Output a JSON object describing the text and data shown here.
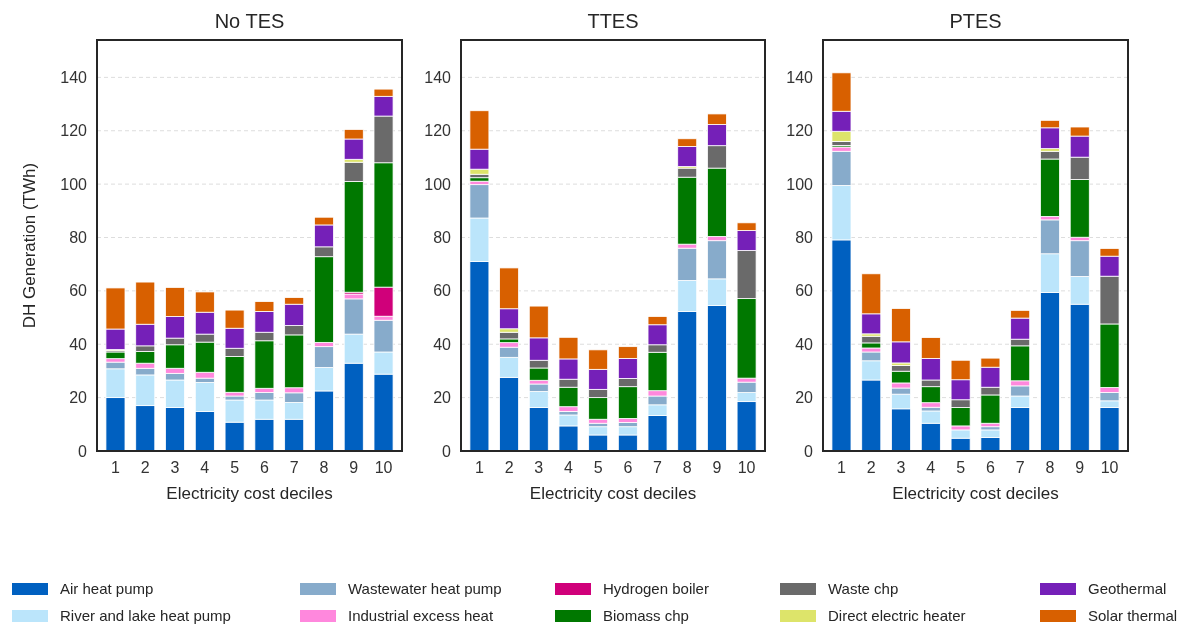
{
  "chart_data": [
    {
      "type": "bar",
      "stacked": true,
      "title": "No TES",
      "xlabel": "Electricity cost deciles",
      "ylabel": "DH Generation (TWh)",
      "categories": [
        "1",
        "2",
        "3",
        "4",
        "5",
        "6",
        "7",
        "8",
        "9",
        "10"
      ],
      "ylim": [
        0,
        154
      ],
      "yticks": [
        0,
        20,
        40,
        60,
        80,
        100,
        120,
        140
      ],
      "grid": "y",
      "legend": "bottom",
      "series": [
        {
          "name": "Air heat pump",
          "color": "#0060c0",
          "values": [
            20,
            17,
            16.3,
            14.8,
            10.8,
            11.9,
            11.9,
            22.5,
            32.9,
            28.8
          ]
        },
        {
          "name": "River and lake heat pump",
          "color": "#bbe5fb",
          "values": [
            10.8,
            11.5,
            10.3,
            10.9,
            8.3,
            7.2,
            6.3,
            8.8,
            10.9,
            8.3
          ]
        },
        {
          "name": "Wastewater heat pump",
          "color": "#87abcb",
          "values": [
            2.5,
            2.5,
            2.5,
            1.6,
            1.5,
            2.8,
            3.6,
            7.8,
            13.2,
            11.9
          ]
        },
        {
          "name": "Industrial excess heat",
          "color": "#ff88dd",
          "values": [
            1.3,
            1.9,
            1.9,
            2.2,
            1.4,
            1.6,
            1.9,
            1.6,
            1.8,
            1.5
          ]
        },
        {
          "name": "Hydrogen boiler",
          "color": "#d0007a",
          "values": [
            0,
            0,
            0,
            0,
            0,
            0,
            0,
            0,
            0.7,
            10.9
          ]
        },
        {
          "name": "Biomass chp",
          "color": "#007800",
          "values": [
            2.5,
            4.4,
            8.8,
            11.3,
            13.4,
            17.8,
            19.8,
            32.1,
            41.5,
            46.6
          ]
        },
        {
          "name": "Waste chp",
          "color": "#6a6a6a",
          "values": [
            0.5,
            2.1,
            2.5,
            3,
            3.1,
            3.2,
            3.5,
            3.7,
            7.2,
            17.5
          ]
        },
        {
          "name": "Direct electric heater",
          "color": "#dde46a",
          "values": [
            0.4,
            0,
            0,
            0,
            0,
            0,
            0,
            0,
            1.1,
            null
          ]
        },
        {
          "name": "Geothermal",
          "color": "#7520b8",
          "values": [
            7.7,
            8.1,
            8.1,
            8.2,
            7.5,
            7.8,
            8,
            8.2,
            7.6,
            7.4
          ]
        },
        {
          "name": "Solar thermal",
          "color": "#d86000",
          "values": [
            15.4,
            15.8,
            10.9,
            7.6,
            6.8,
            3.7,
            2.5,
            2.9,
            3.6,
            2.7
          ]
        }
      ]
    },
    {
      "type": "bar",
      "stacked": true,
      "title": "TTES",
      "xlabel": "Electricity cost deciles",
      "categories": [
        "1",
        "2",
        "3",
        "4",
        "5",
        "6",
        "7",
        "8",
        "9",
        "10"
      ],
      "ylim": [
        0,
        154
      ],
      "yticks": [
        0,
        20,
        40,
        60,
        80,
        100,
        120,
        140
      ],
      "grid": "y",
      "series": [
        {
          "color": "#0060c0",
          "values": [
            71,
            27.6,
            16.3,
            9.4,
            6,
            6,
            13.3,
            52.3,
            54.5,
            18.5
          ]
        },
        {
          "color": "#bbe5fb",
          "values": [
            16.3,
            7.5,
            6,
            4.1,
            3.1,
            3.1,
            4,
            11.6,
            10,
            3.4
          ]
        },
        {
          "color": "#87abcb",
          "values": [
            12.5,
            3.8,
            2.8,
            1.3,
            1.3,
            1.6,
            3.3,
            12.1,
            14.3,
            3.9
          ]
        },
        {
          "color": "#ff88dd",
          "values": [
            1.3,
            1.7,
            1.4,
            1.8,
            1.5,
            1.5,
            2,
            1.5,
            1.6,
            1.5
          ]
        },
        {
          "color": "#d0007a",
          "values": [
            0,
            0,
            0,
            0,
            0,
            0,
            0,
            0,
            0,
            0
          ]
        },
        {
          "color": "#007800",
          "values": [
            1.3,
            1.4,
            4.6,
            7.3,
            8.1,
            11.9,
            14.4,
            25.1,
            25.6,
            29.8
          ]
        },
        {
          "color": "#6a6a6a",
          "values": [
            1.3,
            2.5,
            2.9,
            3,
            3.1,
            3.1,
            2.8,
            3.4,
            8.4,
            18
          ]
        },
        {
          "color": "#dde46a",
          "values": [
            1.9,
            1.3,
            0,
            0,
            0,
            0,
            0,
            0.6,
            0,
            0
          ]
        },
        {
          "color": "#7520b8",
          "values": [
            7.5,
            7.5,
            8.4,
            7.6,
            7.5,
            7.5,
            7.5,
            7.5,
            7.9,
            7.5
          ]
        },
        {
          "color": "#d86000",
          "values": [
            14.4,
            15.3,
            11.9,
            8.1,
            7.3,
            4.4,
            3.1,
            2.9,
            4,
            2.9
          ]
        }
      ]
    },
    {
      "type": "bar",
      "stacked": true,
      "title": "PTES",
      "xlabel": "Electricity cost deciles",
      "categories": [
        "1",
        "2",
        "3",
        "4",
        "5",
        "6",
        "7",
        "8",
        "9",
        "10"
      ],
      "ylim": [
        0,
        154
      ],
      "yticks": [
        0,
        20,
        40,
        60,
        80,
        100,
        120,
        140
      ],
      "grid": "y",
      "series": [
        {
          "color": "#0060c0",
          "values": [
            79.1,
            26.6,
            15.8,
            10.4,
            4.8,
            5.1,
            16.3,
            59.4,
            55,
            16.3
          ]
        },
        {
          "color": "#bbe5fb",
          "values": [
            20.4,
            7.2,
            5.5,
            4.6,
            3.1,
            2.8,
            4.3,
            14.5,
            10.4,
            2.5
          ]
        },
        {
          "color": "#87abcb",
          "values": [
            12.8,
            3.3,
            2.3,
            1.4,
            0,
            1.2,
            3.8,
            12.7,
            13.4,
            3.1
          ]
        },
        {
          "color": "#ff88dd",
          "values": [
            1.6,
            1.5,
            1.9,
            1.7,
            1.5,
            1.3,
            1.9,
            1.3,
            1.3,
            1.9
          ]
        },
        {
          "color": "#d0007a",
          "values": [
            0,
            0,
            0,
            0,
            0,
            0,
            0,
            0,
            0,
            0
          ]
        },
        {
          "color": "#007800",
          "values": [
            0.6,
            1.9,
            4.4,
            6,
            6.9,
            10.6,
            13.1,
            21.5,
            21.6,
            23.8
          ]
        },
        {
          "color": "#6a6a6a",
          "values": [
            1.5,
            2.5,
            2.1,
            2.5,
            2.9,
            2.9,
            2.5,
            2.9,
            8.4,
            17.9
          ]
        },
        {
          "color": "#dde46a",
          "values": [
            3.8,
            0.9,
            1,
            0,
            0,
            0,
            0,
            1,
            0,
            0
          ]
        },
        {
          "color": "#7520b8",
          "values": [
            7.5,
            7.5,
            7.9,
            8.1,
            7.5,
            7.5,
            7.9,
            7.8,
            7.9,
            7.5
          ]
        },
        {
          "color": "#d86000",
          "values": [
            14.4,
            15,
            12.5,
            7.8,
            7.3,
            3.4,
            2.9,
            2.8,
            3.4,
            2.9
          ]
        }
      ]
    }
  ]
}
